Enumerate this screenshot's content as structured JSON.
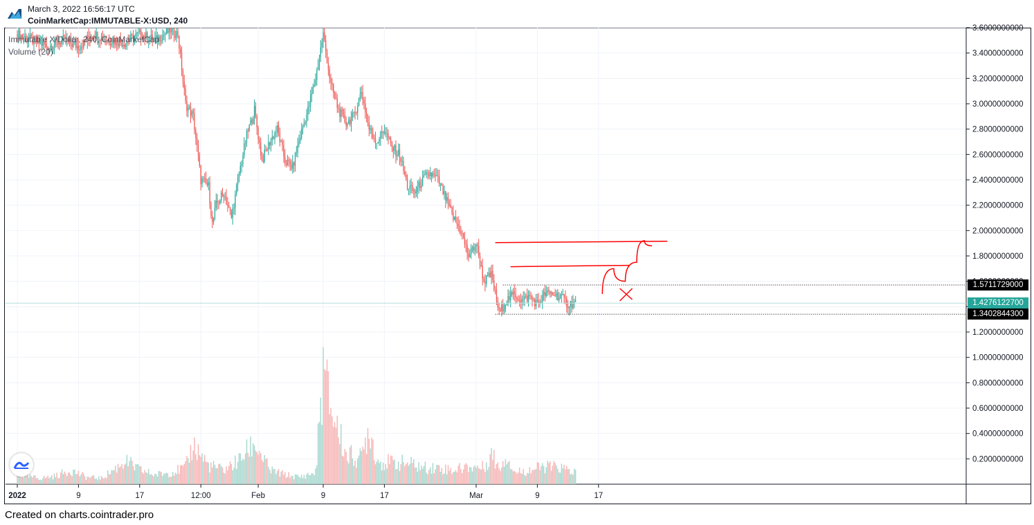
{
  "header": {
    "timestamp": "March 3, 2022 16:56:17 UTC",
    "symbol": "CoinMarketCap:IMMUTABLE-X:USD, 240"
  },
  "legend": {
    "title": "Immutable X/Dollar, 240, CoinMarketCap",
    "volume": "Volume (20)"
  },
  "footer": {
    "credit": "Created on charts.cointrader.pro"
  },
  "logo_icon": "tradingview-logo-icon",
  "colors": {
    "up": "#26a69a",
    "down": "#ef5350",
    "up_vol": "#a8d8cf",
    "down_vol": "#f7b6b6",
    "drawing": "#ff0000",
    "grid": "#f0f3fa",
    "current_label": "#26a69a",
    "line_label": "#000000"
  },
  "chart_data": {
    "type": "candlestick",
    "title": "Immutable X/Dollar, 240, CoinMarketCap",
    "interval": "240",
    "xlabel": "",
    "ylabel": "",
    "ylim": [
      0.0,
      3.6
    ],
    "y_ticks": [
      "3.6000000000",
      "3.4000000000",
      "3.2000000000",
      "3.0000000000",
      "2.8000000000",
      "2.6000000000",
      "2.4000000000",
      "2.2000000000",
      "2.0000000000",
      "1.8000000000",
      "1.6000000000",
      "1.4000000000",
      "1.2000000000",
      "1.0000000000",
      "0.8000000000",
      "0.6000000000",
      "0.4000000000",
      "0.2000000000"
    ],
    "x_ticks": [
      {
        "label": "2022",
        "day": 0,
        "bold": true
      },
      {
        "label": "9",
        "day": 8
      },
      {
        "label": "17",
        "day": 16
      },
      {
        "label": "12:00",
        "day": 24
      },
      {
        "label": "Feb",
        "day": 31.5
      },
      {
        "label": "9",
        "day": 40
      },
      {
        "label": "17",
        "day": 48
      },
      {
        "label": "Mar",
        "day": 60
      },
      {
        "label": "9",
        "day": 68
      },
      {
        "label": "17",
        "day": 76
      }
    ],
    "price_labels": [
      {
        "value": 1.5711729,
        "text": "1.5711729000",
        "kind": "line"
      },
      {
        "value": 1.42761227,
        "text": "1.4276122700",
        "kind": "current"
      },
      {
        "value": 1.34028443,
        "text": "1.3402844300",
        "kind": "line"
      }
    ],
    "grid": true,
    "price_path": [
      [
        0,
        3.55
      ],
      [
        2,
        3.5
      ],
      [
        4,
        3.45
      ],
      [
        6,
        3.5
      ],
      [
        8,
        3.45
      ],
      [
        10,
        3.55
      ],
      [
        12,
        3.5
      ],
      [
        14,
        3.48
      ],
      [
        15,
        3.52
      ],
      [
        16,
        3.55
      ],
      [
        18,
        3.5
      ],
      [
        20,
        3.58
      ],
      [
        21,
        3.55
      ],
      [
        22,
        3.0
      ],
      [
        23,
        2.9
      ],
      [
        24,
        2.4
      ],
      [
        25,
        2.35
      ],
      [
        25.5,
        2.05
      ],
      [
        26,
        2.2
      ],
      [
        27,
        2.3
      ],
      [
        28,
        2.1
      ],
      [
        29,
        2.45
      ],
      [
        30,
        2.75
      ],
      [
        31,
        2.95
      ],
      [
        32,
        2.55
      ],
      [
        33,
        2.7
      ],
      [
        34,
        2.8
      ],
      [
        35,
        2.55
      ],
      [
        36,
        2.5
      ],
      [
        37,
        2.75
      ],
      [
        38,
        2.95
      ],
      [
        39,
        3.2
      ],
      [
        40,
        3.55
      ],
      [
        41,
        3.15
      ],
      [
        42,
        2.95
      ],
      [
        43,
        2.85
      ],
      [
        44,
        2.9
      ],
      [
        45,
        3.1
      ],
      [
        46,
        2.8
      ],
      [
        47,
        2.7
      ],
      [
        48,
        2.8
      ],
      [
        49,
        2.65
      ],
      [
        50,
        2.6
      ],
      [
        51,
        2.35
      ],
      [
        52,
        2.3
      ],
      [
        53,
        2.4
      ],
      [
        54,
        2.45
      ],
      [
        55,
        2.4
      ],
      [
        56,
        2.25
      ],
      [
        57,
        2.1
      ],
      [
        58,
        2.0
      ],
      [
        59,
        1.8
      ],
      [
        60,
        1.9
      ],
      [
        61,
        1.6
      ],
      [
        62,
        1.65
      ],
      [
        63,
        1.35
      ],
      [
        64,
        1.45
      ],
      [
        65,
        1.5
      ],
      [
        66,
        1.45
      ],
      [
        67,
        1.48
      ],
      [
        68,
        1.42
      ],
      [
        69,
        1.5
      ],
      [
        70,
        1.5
      ],
      [
        71,
        1.48
      ],
      [
        72,
        1.42
      ],
      [
        73,
        1.43
      ]
    ],
    "volume_path": [
      [
        0,
        0.08
      ],
      [
        3,
        0.05
      ],
      [
        5,
        0.07
      ],
      [
        7,
        0.12
      ],
      [
        9,
        0.06
      ],
      [
        11,
        0.05
      ],
      [
        13,
        0.14
      ],
      [
        14,
        0.2
      ],
      [
        16,
        0.12
      ],
      [
        18,
        0.08
      ],
      [
        20,
        0.1
      ],
      [
        22,
        0.14
      ],
      [
        23,
        0.34
      ],
      [
        25,
        0.16
      ],
      [
        27,
        0.12
      ],
      [
        29,
        0.2
      ],
      [
        31,
        0.35
      ],
      [
        33,
        0.12
      ],
      [
        35,
        0.08
      ],
      [
        37,
        0.06
      ],
      [
        39,
        0.1
      ],
      [
        40,
        0.95
      ],
      [
        41,
        0.65
      ],
      [
        43,
        0.25
      ],
      [
        45,
        0.22
      ],
      [
        46,
        0.5
      ],
      [
        47,
        0.2
      ],
      [
        49,
        0.18
      ],
      [
        51,
        0.18
      ],
      [
        53,
        0.14
      ],
      [
        55,
        0.14
      ],
      [
        57,
        0.12
      ],
      [
        59,
        0.15
      ],
      [
        61,
        0.14
      ],
      [
        62,
        0.26
      ],
      [
        63,
        0.14
      ],
      [
        64,
        0.25
      ],
      [
        65,
        0.1
      ],
      [
        67,
        0.12
      ],
      [
        69,
        0.15
      ],
      [
        71,
        0.14
      ],
      [
        73,
        0.1
      ]
    ],
    "annotations": [
      {
        "kind": "horizontal",
        "y": 1.905,
        "from_day": 62.5,
        "to_day": 85
      },
      {
        "kind": "horizontal",
        "y": 1.715,
        "from_day": 64.5,
        "to_day": 80
      },
      {
        "kind": "curve",
        "points": [
          [
            76.5,
            1.5
          ],
          [
            78,
            1.7
          ],
          [
            79.5,
            1.6
          ],
          [
            81,
            1.75
          ],
          [
            82,
            1.92
          ],
          [
            83,
            1.88
          ]
        ]
      },
      {
        "kind": "cross",
        "center": [
          80.5,
          1.5
        ]
      }
    ]
  }
}
